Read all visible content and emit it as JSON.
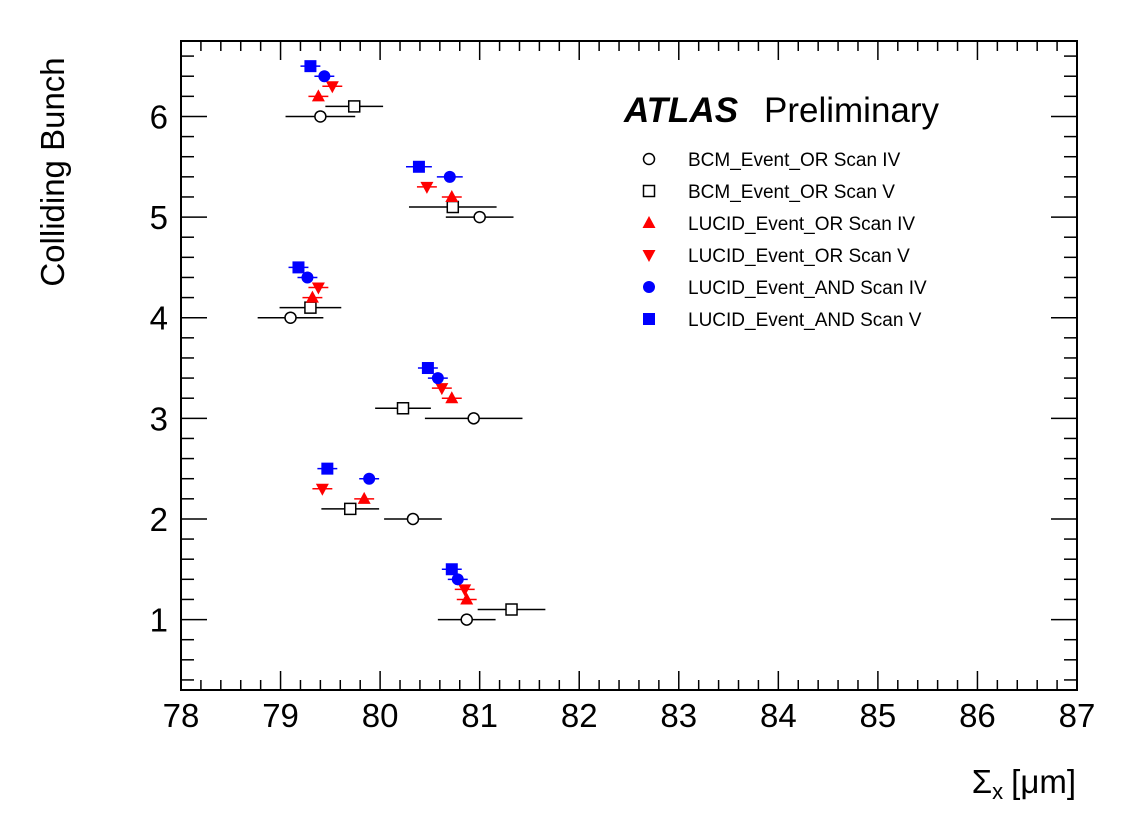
{
  "chart_data": {
    "type": "scatter",
    "title": "",
    "annotation": {
      "bold": "ATLAS",
      "text": "Preliminary"
    },
    "xlabel": "Σx [μm]",
    "xlabel_parts": {
      "symbol": "Σ",
      "sub": "x",
      "unit": "[μm]"
    },
    "ylabel": "Colliding Bunch",
    "xlim": [
      78,
      87
    ],
    "ylim": [
      0.3,
      6.75
    ],
    "x_ticks": [
      "78",
      "79",
      "80",
      "81",
      "82",
      "83",
      "84",
      "85",
      "86",
      "87"
    ],
    "y_ticks": [
      "1",
      "2",
      "3",
      "4",
      "5",
      "6"
    ],
    "grid": false,
    "legend_position": "top-right",
    "series": [
      {
        "name": "BCM_Event_OR Scan IV",
        "marker": "circle-open",
        "color": "#000000",
        "points": [
          {
            "x": 80.87,
            "y": 1.0,
            "xerr": 0.29
          },
          {
            "x": 80.33,
            "y": 2.0,
            "xerr": 0.29
          },
          {
            "x": 80.94,
            "y": 3.0,
            "xerr": 0.49
          },
          {
            "x": 79.1,
            "y": 4.0,
            "xerr": 0.33
          },
          {
            "x": 81.0,
            "y": 5.0,
            "xerr": 0.34
          },
          {
            "x": 79.4,
            "y": 6.0,
            "xerr": 0.35
          }
        ]
      },
      {
        "name": "BCM_Event_OR Scan V",
        "marker": "square-open",
        "color": "#000000",
        "points": [
          {
            "x": 81.32,
            "y": 1.1,
            "xerr": 0.34
          },
          {
            "x": 79.7,
            "y": 2.1,
            "xerr": 0.29
          },
          {
            "x": 80.23,
            "y": 3.1,
            "xerr": 0.28
          },
          {
            "x": 79.3,
            "y": 4.1,
            "xerr": 0.31
          },
          {
            "x": 80.73,
            "y": 5.1,
            "xerr": 0.44
          },
          {
            "x": 79.74,
            "y": 6.1,
            "xerr": 0.29
          }
        ]
      },
      {
        "name": "LUCID_Event_OR Scan IV",
        "marker": "triangle-up",
        "color": "#ff0000",
        "points": [
          {
            "x": 80.87,
            "y": 1.2,
            "xerr": 0.1
          },
          {
            "x": 79.84,
            "y": 2.2,
            "xerr": 0.1
          },
          {
            "x": 80.72,
            "y": 3.2,
            "xerr": 0.1
          },
          {
            "x": 79.32,
            "y": 4.2,
            "xerr": 0.1
          },
          {
            "x": 80.72,
            "y": 5.2,
            "xerr": 0.1
          },
          {
            "x": 79.38,
            "y": 6.2,
            "xerr": 0.1
          }
        ]
      },
      {
        "name": "LUCID_Event_OR Scan V",
        "marker": "triangle-down",
        "color": "#ff0000",
        "points": [
          {
            "x": 80.85,
            "y": 1.3,
            "xerr": 0.1
          },
          {
            "x": 79.42,
            "y": 2.3,
            "xerr": 0.1
          },
          {
            "x": 80.62,
            "y": 3.3,
            "xerr": 0.1
          },
          {
            "x": 79.38,
            "y": 4.3,
            "xerr": 0.1
          },
          {
            "x": 80.47,
            "y": 5.3,
            "xerr": 0.1
          },
          {
            "x": 79.52,
            "y": 6.3,
            "xerr": 0.1
          }
        ]
      },
      {
        "name": "LUCID_Event_AND Scan IV",
        "marker": "circle",
        "color": "#0000ff",
        "points": [
          {
            "x": 80.78,
            "y": 1.4,
            "xerr": 0.1
          },
          {
            "x": 79.89,
            "y": 2.4,
            "xerr": 0.1
          },
          {
            "x": 80.58,
            "y": 3.4,
            "xerr": 0.1
          },
          {
            "x": 79.27,
            "y": 4.4,
            "xerr": 0.1
          },
          {
            "x": 80.7,
            "y": 5.4,
            "xerr": 0.13
          },
          {
            "x": 79.44,
            "y": 6.4,
            "xerr": 0.1
          }
        ]
      },
      {
        "name": "LUCID_Event_AND Scan V",
        "marker": "square",
        "color": "#0000ff",
        "points": [
          {
            "x": 80.72,
            "y": 1.5,
            "xerr": 0.1
          },
          {
            "x": 79.47,
            "y": 2.5,
            "xerr": 0.1
          },
          {
            "x": 80.48,
            "y": 3.5,
            "xerr": 0.1
          },
          {
            "x": 79.18,
            "y": 4.5,
            "xerr": 0.1
          },
          {
            "x": 80.39,
            "y": 5.5,
            "xerr": 0.13
          },
          {
            "x": 79.3,
            "y": 6.5,
            "xerr": 0.1
          }
        ]
      }
    ]
  }
}
